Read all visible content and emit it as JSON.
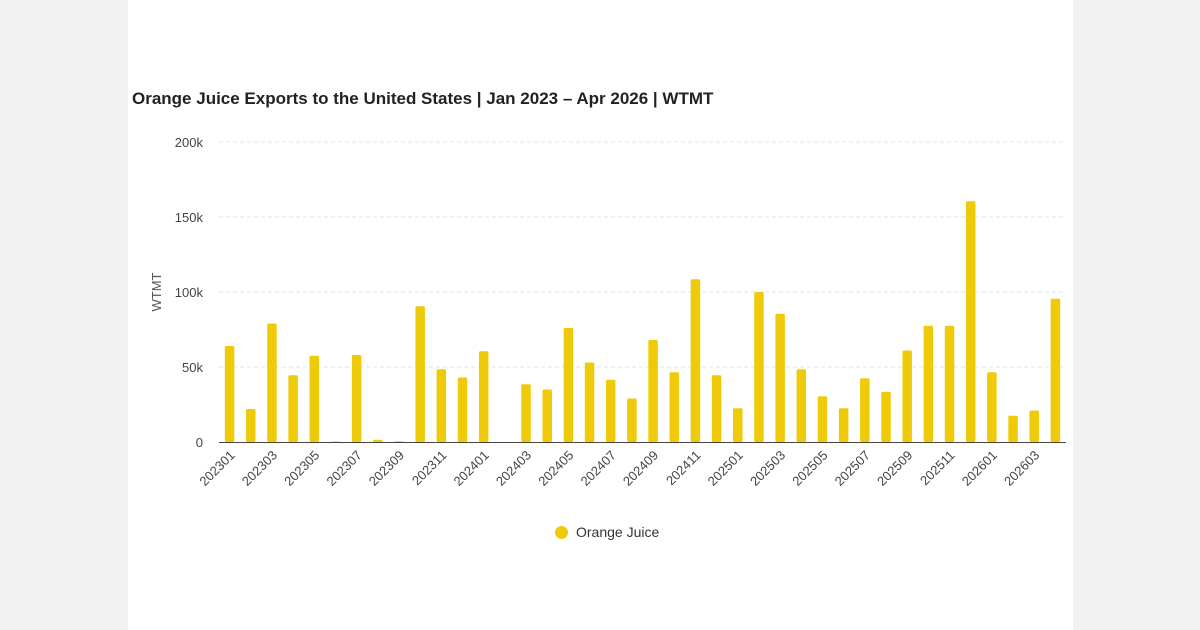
{
  "colors": {
    "series": "#EFCA08",
    "grid": "#e3e3e3",
    "axis": "#444444",
    "background": "#ffffff"
  },
  "chart_data": {
    "type": "bar",
    "title": "Orange Juice Exports to the United States | Jan 2023 – Apr 2026 | WTMT",
    "xlabel": "",
    "ylabel": "WTMT",
    "ylim": [
      0,
      200000
    ],
    "yticks": [
      {
        "value": 0,
        "label": "0"
      },
      {
        "value": 50000,
        "label": "50k"
      },
      {
        "value": 100000,
        "label": "100k"
      },
      {
        "value": 150000,
        "label": "150k"
      },
      {
        "value": 200000,
        "label": "200k"
      }
    ],
    "grid": true,
    "legend": "bottom-center",
    "categories": [
      "202301",
      "202302",
      "202303",
      "202304",
      "202305",
      "202306",
      "202307",
      "202308",
      "202309",
      "202310",
      "202311",
      "202312",
      "202401",
      "202402",
      "202403",
      "202404",
      "202405",
      "202406",
      "202407",
      "202408",
      "202409",
      "202410",
      "202411",
      "202412",
      "202501",
      "202502",
      "202503",
      "202504",
      "202505",
      "202506",
      "202507",
      "202508",
      "202509",
      "202510",
      "202511",
      "202512",
      "202601",
      "202602",
      "202603",
      "202604"
    ],
    "tick_labels": [
      "202301",
      "202303",
      "202305",
      "202307",
      "202309",
      "202311",
      "202401",
      "202403",
      "202405",
      "202407",
      "202409",
      "202411",
      "202501",
      "202503",
      "202505",
      "202507",
      "202509",
      "202511",
      "202601",
      "202603"
    ],
    "series": [
      {
        "name": "Orange Juice",
        "values": [
          64000,
          22000,
          79000,
          44500,
          57500,
          300,
          58000,
          1500,
          500,
          90500,
          48500,
          43000,
          60500,
          0,
          38500,
          35000,
          76000,
          53000,
          41500,
          29000,
          68000,
          46500,
          108500,
          44500,
          22500,
          100000,
          85500,
          48500,
          30500,
          22500,
          42500,
          33500,
          61000,
          77500,
          77500,
          160500,
          46500,
          17500,
          21000,
          95500
        ]
      }
    ]
  }
}
